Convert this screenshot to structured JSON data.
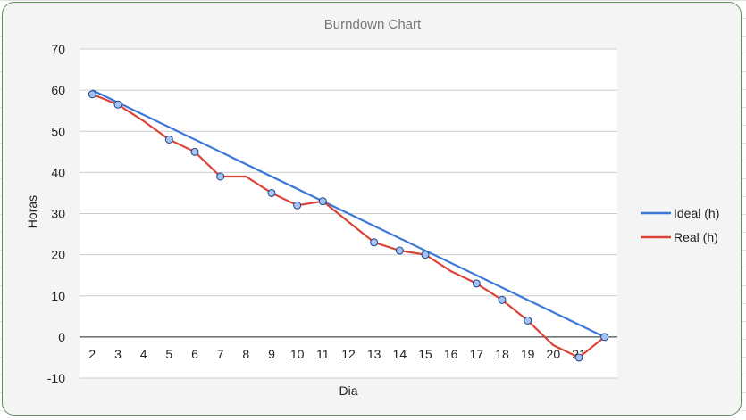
{
  "chart_data": {
    "type": "line",
    "title": "Burndown Chart",
    "xlabel": "Dia",
    "ylabel": "Horas",
    "ylim": [
      -10,
      70
    ],
    "yticks": [
      -10,
      0,
      10,
      20,
      30,
      40,
      50,
      60,
      70
    ],
    "x": [
      2,
      3,
      4,
      5,
      6,
      7,
      8,
      9,
      10,
      11,
      12,
      13,
      14,
      15,
      16,
      17,
      18,
      19,
      20,
      21,
      22
    ],
    "xtick_labels": [
      "2",
      "3",
      "4",
      "5",
      "6",
      "7",
      "8",
      "9",
      "10",
      "11",
      "12",
      "13",
      "14",
      "15",
      "16",
      "17",
      "18",
      "19",
      "20",
      "21"
    ],
    "grid": true,
    "legend_position": "right",
    "series": [
      {
        "name": "Ideal (h)",
        "color": "#3c78d8",
        "x": [
          2,
          22
        ],
        "values": [
          60,
          0
        ],
        "markers": false
      },
      {
        "name": "Real (h)",
        "color": "#db4437",
        "x": [
          2,
          3,
          4,
          5,
          6,
          7,
          8,
          9,
          10,
          11,
          12,
          13,
          14,
          15,
          16,
          17,
          18,
          19,
          20,
          21,
          22
        ],
        "values": [
          59,
          56.5,
          52.5,
          48,
          45,
          39,
          39,
          35,
          32,
          33,
          28,
          23,
          21,
          20,
          16,
          13,
          9,
          4,
          -2,
          -5,
          0
        ],
        "marker_points": [
          2,
          3,
          5,
          6,
          7,
          9,
          10,
          11,
          13,
          14,
          15,
          17,
          18,
          19,
          21,
          22
        ],
        "markers": true
      }
    ],
    "marker_color": "#a4c2f4",
    "marker_stroke": "#1c4587"
  }
}
